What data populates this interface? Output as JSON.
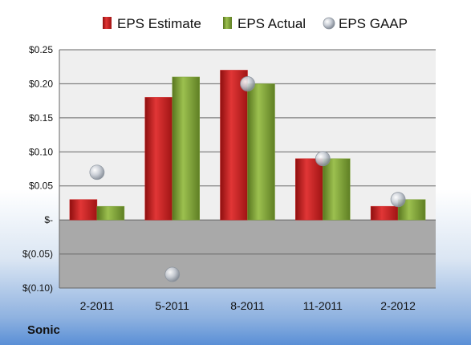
{
  "company_label": "Sonic",
  "colors": {
    "estimate": "#cc1f1f",
    "actual": "#7ea23a",
    "gaap": "#b8bec8",
    "plot_upper_bg": "#efefef",
    "plot_lower_bg": "#a9a9a9",
    "grid": "#666666"
  },
  "chart_data": {
    "type": "bar",
    "categories": [
      "2-2011",
      "5-2011",
      "8-2011",
      "11-2011",
      "2-2012"
    ],
    "series": [
      {
        "name": "EPS Estimate",
        "kind": "bar",
        "values": [
          0.03,
          0.18,
          0.22,
          0.09,
          0.02
        ]
      },
      {
        "name": "EPS Actual",
        "kind": "bar",
        "values": [
          0.02,
          0.21,
          0.2,
          0.09,
          0.03
        ]
      },
      {
        "name": "EPS GAAP",
        "kind": "scatter",
        "values": [
          0.07,
          -0.08,
          0.2,
          0.09,
          0.03
        ]
      }
    ],
    "y_ticks": [
      0.25,
      0.2,
      0.15,
      0.1,
      0.05,
      0,
      -0.05,
      -0.1
    ],
    "y_tick_labels": [
      "$0.25",
      "$0.20",
      "$0.15",
      "$0.10",
      "$0.05",
      "$-",
      "$(0.05)",
      "$(0.10)"
    ],
    "ylim": [
      -0.1,
      0.25
    ],
    "grid": true,
    "legend_position": "top"
  }
}
